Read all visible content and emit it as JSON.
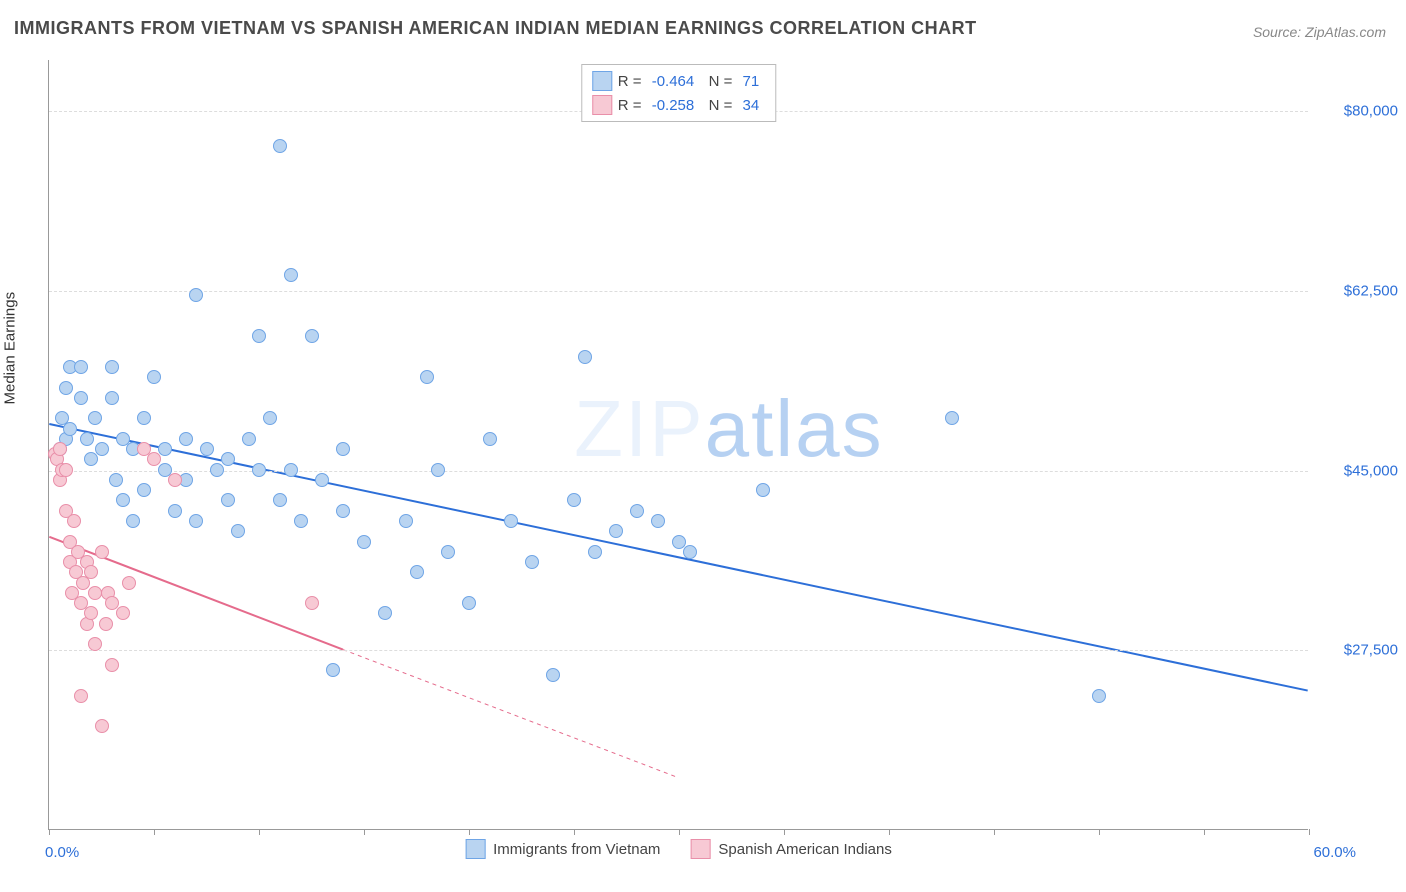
{
  "title": "IMMIGRANTS FROM VIETNAM VS SPANISH AMERICAN INDIAN MEDIAN EARNINGS CORRELATION CHART",
  "source": "Source: ZipAtlas.com",
  "ylabel": "Median Earnings",
  "watermark": {
    "text_light": "ZIP",
    "text_blue": "atlas",
    "color_light": "#d7e6fa",
    "color_blue": "#6fa5e6",
    "opacity": 0.5
  },
  "axes": {
    "xlim": [
      0,
      60
    ],
    "ylim": [
      10000,
      85000
    ],
    "x_label_min": "0.0%",
    "x_label_max": "60.0%",
    "xtick_positions_pct": [
      0,
      5,
      10,
      15,
      20,
      25,
      30,
      35,
      40,
      45,
      50,
      55,
      60
    ],
    "yticks": [
      {
        "value": 80000,
        "label": "$80,000"
      },
      {
        "value": 62500,
        "label": "$62,500"
      },
      {
        "value": 45000,
        "label": "$45,000"
      },
      {
        "value": 27500,
        "label": "$27,500"
      }
    ],
    "grid_color": "#dddddd",
    "axis_color": "#999999"
  },
  "series": [
    {
      "name": "Immigrants from Vietnam",
      "r": "-0.464",
      "n": "71",
      "fill": "#b9d4f1",
      "stroke": "#6fa5e6",
      "line_color": "#2d6fd8",
      "line_width": 2,
      "trend": {
        "x1": 0,
        "y1": 49500,
        "x2": 60,
        "y2": 23500
      },
      "dashed_extent": null,
      "points": [
        [
          0.5,
          47000
        ],
        [
          0.6,
          50000
        ],
        [
          0.8,
          53000
        ],
        [
          0.8,
          48000
        ],
        [
          1.0,
          55000
        ],
        [
          1.0,
          49000
        ],
        [
          1.5,
          52000
        ],
        [
          1.5,
          55000
        ],
        [
          1.8,
          48000
        ],
        [
          2.0,
          46000
        ],
        [
          2.2,
          50000
        ],
        [
          2.5,
          47000
        ],
        [
          3.0,
          52000
        ],
        [
          3.0,
          55000
        ],
        [
          3.2,
          44000
        ],
        [
          3.5,
          42000
        ],
        [
          3.5,
          48000
        ],
        [
          4.0,
          47000
        ],
        [
          4.0,
          40000
        ],
        [
          4.5,
          50000
        ],
        [
          4.5,
          43000
        ],
        [
          5.0,
          54000
        ],
        [
          5.5,
          45000
        ],
        [
          5.5,
          47000
        ],
        [
          6.0,
          41000
        ],
        [
          6.5,
          44000
        ],
        [
          6.5,
          48000
        ],
        [
          7.0,
          40000
        ],
        [
          7.0,
          62000
        ],
        [
          7.5,
          47000
        ],
        [
          8.0,
          45000
        ],
        [
          8.5,
          42000
        ],
        [
          8.5,
          46000
        ],
        [
          9.0,
          39000
        ],
        [
          9.5,
          48000
        ],
        [
          10.0,
          45000
        ],
        [
          10.0,
          58000
        ],
        [
          10.5,
          50000
        ],
        [
          11.0,
          42000
        ],
        [
          11.0,
          76500
        ],
        [
          11.5,
          45000
        ],
        [
          11.5,
          64000
        ],
        [
          12.0,
          40000
        ],
        [
          12.5,
          58000
        ],
        [
          13.0,
          44000
        ],
        [
          13.5,
          25500
        ],
        [
          14.0,
          41000
        ],
        [
          14.0,
          47000
        ],
        [
          15.0,
          38000
        ],
        [
          16.0,
          31000
        ],
        [
          17.0,
          40000
        ],
        [
          17.5,
          35000
        ],
        [
          18.0,
          54000
        ],
        [
          18.5,
          45000
        ],
        [
          19.0,
          37000
        ],
        [
          20.0,
          32000
        ],
        [
          21.0,
          48000
        ],
        [
          22.0,
          40000
        ],
        [
          23.0,
          36000
        ],
        [
          24.0,
          25000
        ],
        [
          25.0,
          42000
        ],
        [
          25.5,
          56000
        ],
        [
          26.0,
          37000
        ],
        [
          27.0,
          39000
        ],
        [
          28.0,
          41000
        ],
        [
          29.0,
          40000
        ],
        [
          30.0,
          38000
        ],
        [
          30.5,
          37000
        ],
        [
          34.0,
          43000
        ],
        [
          43.0,
          50000
        ],
        [
          50.0,
          23000
        ]
      ]
    },
    {
      "name": "Spanish American Indians",
      "r": "-0.258",
      "n": "34",
      "fill": "#f7c9d4",
      "stroke": "#e98fa9",
      "line_color": "#e56b8c",
      "line_width": 2,
      "trend": {
        "x1": 0,
        "y1": 38500,
        "x2": 14,
        "y2": 27500
      },
      "dashed_extent": {
        "x1": 14,
        "y1": 27500,
        "x2": 30,
        "y2": 15000
      },
      "points": [
        [
          0.3,
          46500
        ],
        [
          0.4,
          46000
        ],
        [
          0.5,
          47000
        ],
        [
          0.5,
          44000
        ],
        [
          0.6,
          45000
        ],
        [
          0.8,
          45000
        ],
        [
          0.8,
          41000
        ],
        [
          1.0,
          38000
        ],
        [
          1.0,
          36000
        ],
        [
          1.1,
          33000
        ],
        [
          1.2,
          40000
        ],
        [
          1.3,
          35000
        ],
        [
          1.4,
          37000
        ],
        [
          1.5,
          32000
        ],
        [
          1.5,
          23000
        ],
        [
          1.6,
          34000
        ],
        [
          1.8,
          30000
        ],
        [
          1.8,
          36000
        ],
        [
          2.0,
          31000
        ],
        [
          2.0,
          35000
        ],
        [
          2.2,
          33000
        ],
        [
          2.2,
          28000
        ],
        [
          2.5,
          37000
        ],
        [
          2.5,
          20000
        ],
        [
          2.7,
          30000
        ],
        [
          2.8,
          33000
        ],
        [
          3.0,
          32000
        ],
        [
          3.0,
          26000
        ],
        [
          3.5,
          31000
        ],
        [
          3.8,
          34000
        ],
        [
          4.5,
          47000
        ],
        [
          5.0,
          46000
        ],
        [
          6.0,
          44000
        ],
        [
          12.5,
          32000
        ]
      ]
    }
  ],
  "bottom_legend": [
    {
      "label": "Immigrants from Vietnam",
      "fill": "#b9d4f1",
      "stroke": "#6fa5e6"
    },
    {
      "label": "Spanish American Indians",
      "fill": "#f7c9d4",
      "stroke": "#e98fa9"
    }
  ]
}
